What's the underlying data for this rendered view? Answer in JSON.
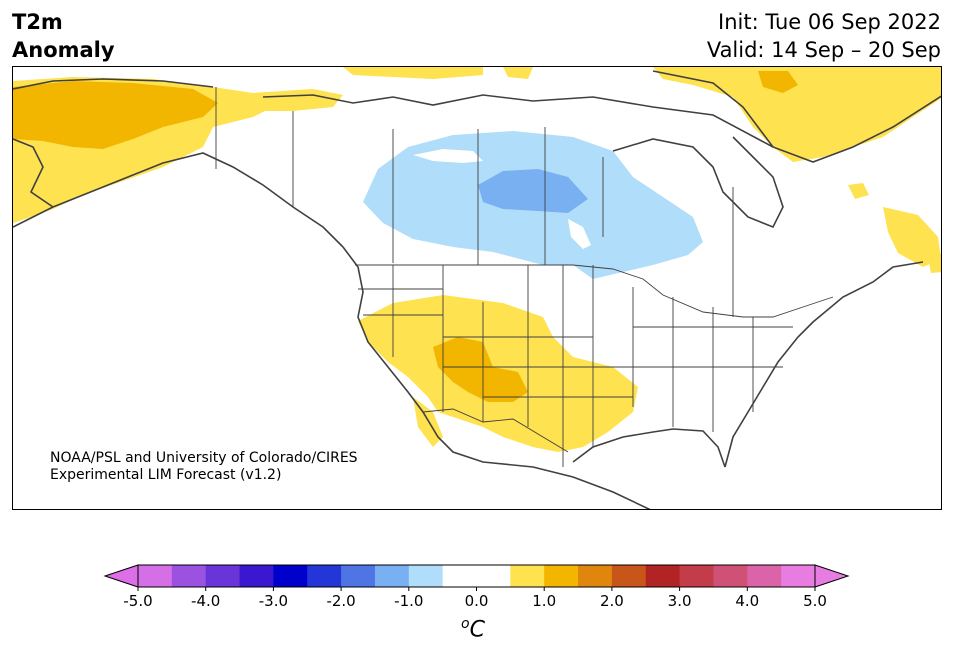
{
  "header": {
    "title_line1": "T2m",
    "title_line2": "Anomaly",
    "init": "Init: Tue 06 Sep 2022",
    "valid": "Valid: 14 Sep – 20 Sep"
  },
  "credit": {
    "line1": "NOAA/PSL and University of Colorado/CIRES",
    "line2": "Experimental LIM Forecast (v1.2)"
  },
  "colorbar": {
    "unit_base": "C",
    "unit_sup": "o",
    "ticks": [
      "-5.0",
      "-4.0",
      "-3.0",
      "-2.0",
      "-1.0",
      "0.0",
      "1.0",
      "2.0",
      "3.0",
      "4.0",
      "5.0"
    ],
    "under_color": "#dd6ee8",
    "over_color": "#e77de0",
    "colors": [
      "#d46fe6",
      "#9b52e0",
      "#6a35d8",
      "#3a18cf",
      "#0000cd",
      "#2436d8",
      "#4f74e4",
      "#78b0f2",
      "#b0ddfa",
      "#ffffff",
      "#ffffff",
      "#fee24f",
      "#f2b500",
      "#e0860d",
      "#c8551a",
      "#b22424",
      "#c43c4a",
      "#cf5276",
      "#db64a8",
      "#e77de0"
    ]
  },
  "map": {
    "anomalies": [
      {
        "region": "Alaska",
        "value": 1.0
      },
      {
        "region": "Alaska interior",
        "value": 1.5
      },
      {
        "region": "Northern Great Plains / Prairies",
        "value": -1.0
      },
      {
        "region": "Saskatchewan / Manitoba",
        "value": -1.5
      },
      {
        "region": "US Southwest",
        "value": 1.0
      },
      {
        "region": "Four Corners",
        "value": 1.5
      },
      {
        "region": "Greenland / Arctic Islands",
        "value": 1.0
      }
    ]
  }
}
